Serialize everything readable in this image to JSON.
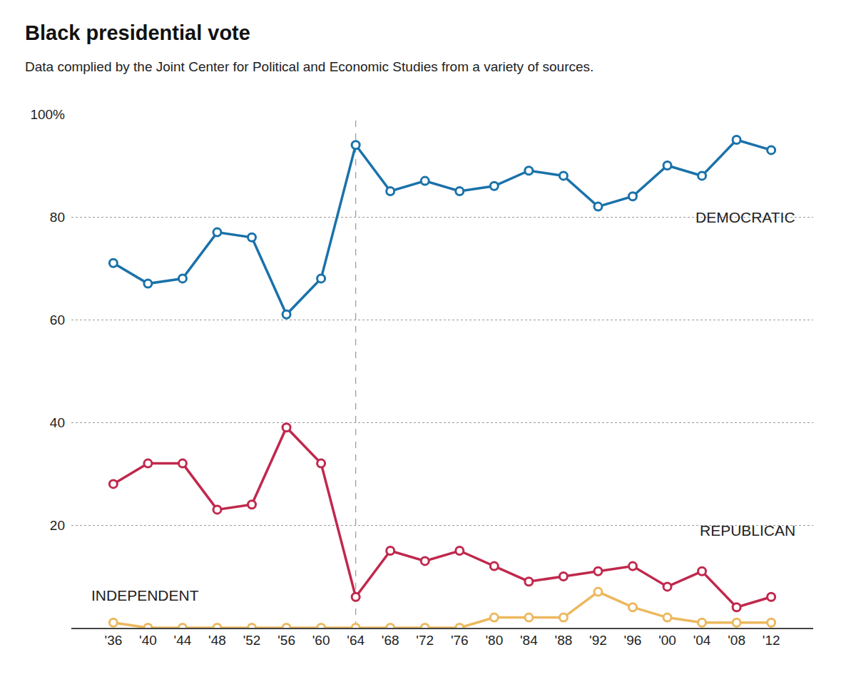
{
  "chart_data": {
    "type": "line",
    "title": "Black presidential vote",
    "subtitle": "Data complied by the Joint Center for Political and Economic Studies from a variety of sources.",
    "categories": [
      "'36",
      "'40",
      "'44",
      "'48",
      "'52",
      "'56",
      "'60",
      "'64",
      "'68",
      "'72",
      "'76",
      "'80",
      "'84",
      "'88",
      "'92",
      "'96",
      "'00",
      "'04",
      "'08",
      "'12"
    ],
    "series": [
      {
        "name": "DEMOCRATIC",
        "color": "#1a72aa",
        "values": [
          71,
          67,
          68,
          77,
          76,
          61,
          68,
          94,
          85,
          87,
          85,
          86,
          89,
          88,
          82,
          84,
          90,
          88,
          95,
          93
        ]
      },
      {
        "name": "REPUBLICAN",
        "color": "#c0284d",
        "values": [
          28,
          32,
          32,
          23,
          24,
          39,
          32,
          6,
          15,
          13,
          15,
          12,
          9,
          10,
          11,
          12,
          8,
          11,
          4,
          6
        ]
      },
      {
        "name": "INDEPENDENT",
        "color": "#ecb85e",
        "values": [
          1,
          0,
          0,
          0,
          0,
          0,
          0,
          0,
          0,
          0,
          0,
          2,
          2,
          2,
          7,
          4,
          2,
          1,
          1,
          1
        ]
      }
    ],
    "ylim": [
      0,
      100
    ],
    "yticks": [
      20,
      40,
      60,
      80,
      {
        "value": 100,
        "label": "100%"
      }
    ],
    "grid": true,
    "marker": "circle-open",
    "vline": {
      "x": "'64",
      "line_style": "dash"
    }
  }
}
